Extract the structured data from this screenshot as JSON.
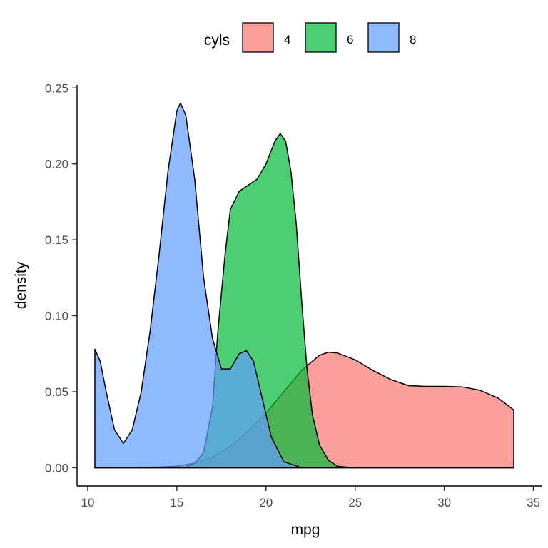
{
  "chart_data": {
    "type": "area",
    "title": "",
    "xlabel": "mpg",
    "ylabel": "density",
    "xlim": [
      9.4,
      35.5
    ],
    "ylim": [
      -0.012,
      0.252
    ],
    "x_ticks": [
      10,
      15,
      20,
      25,
      30,
      35
    ],
    "y_ticks": [
      0.0,
      0.05,
      0.1,
      0.15,
      0.2,
      0.25
    ],
    "x_tick_labels": [
      "10",
      "15",
      "20",
      "25",
      "30",
      "35"
    ],
    "y_tick_labels": [
      "0.00",
      "0.05",
      "0.10",
      "0.15",
      "0.20",
      "0.25"
    ],
    "grid": false,
    "legend": {
      "title": "cyls",
      "position": "top",
      "entries": [
        "4",
        "6",
        "8"
      ]
    },
    "series": [
      {
        "name": "4",
        "color": "#F8766D",
        "points": [
          [
            10.4,
            0.0
          ],
          [
            12.0,
            0.0
          ],
          [
            13.0,
            0.0
          ],
          [
            14.0,
            0.0005
          ],
          [
            15.0,
            0.001
          ],
          [
            16.0,
            0.003
          ],
          [
            17.0,
            0.007
          ],
          [
            18.0,
            0.014
          ],
          [
            19.0,
            0.024
          ],
          [
            20.0,
            0.036
          ],
          [
            21.0,
            0.05
          ],
          [
            22.0,
            0.064
          ],
          [
            23.0,
            0.074
          ],
          [
            23.5,
            0.076
          ],
          [
            24.0,
            0.0755
          ],
          [
            25.0,
            0.071
          ],
          [
            26.0,
            0.064
          ],
          [
            27.0,
            0.058
          ],
          [
            28.0,
            0.054
          ],
          [
            29.0,
            0.0535
          ],
          [
            30.0,
            0.0535
          ],
          [
            31.0,
            0.0532
          ],
          [
            32.0,
            0.051
          ],
          [
            33.0,
            0.046
          ],
          [
            33.9,
            0.038
          ]
        ]
      },
      {
        "name": "6",
        "color": "#00BA38",
        "points": [
          [
            10.4,
            0.0
          ],
          [
            15.0,
            0.0
          ],
          [
            15.5,
            0.0005
          ],
          [
            16.0,
            0.003
          ],
          [
            16.5,
            0.01
          ],
          [
            17.0,
            0.04
          ],
          [
            17.3,
            0.09
          ],
          [
            17.7,
            0.14
          ],
          [
            18.0,
            0.17
          ],
          [
            18.5,
            0.182
          ],
          [
            19.0,
            0.186
          ],
          [
            19.5,
            0.19
          ],
          [
            20.0,
            0.2
          ],
          [
            20.5,
            0.215
          ],
          [
            20.8,
            0.22
          ],
          [
            21.1,
            0.215
          ],
          [
            21.4,
            0.195
          ],
          [
            21.7,
            0.16
          ],
          [
            22.0,
            0.11
          ],
          [
            22.3,
            0.065
          ],
          [
            22.6,
            0.035
          ],
          [
            23.0,
            0.015
          ],
          [
            23.5,
            0.005
          ],
          [
            24.0,
            0.001
          ],
          [
            25.0,
            0.0
          ],
          [
            33.9,
            0.0
          ]
        ]
      },
      {
        "name": "8",
        "color": "#619CFF",
        "points": [
          [
            10.4,
            0.078
          ],
          [
            10.7,
            0.07
          ],
          [
            11.0,
            0.052
          ],
          [
            11.5,
            0.025
          ],
          [
            12.0,
            0.016
          ],
          [
            12.5,
            0.025
          ],
          [
            13.0,
            0.05
          ],
          [
            13.5,
            0.09
          ],
          [
            14.0,
            0.14
          ],
          [
            14.5,
            0.195
          ],
          [
            15.0,
            0.235
          ],
          [
            15.2,
            0.24
          ],
          [
            15.5,
            0.232
          ],
          [
            16.0,
            0.19
          ],
          [
            16.5,
            0.125
          ],
          [
            17.0,
            0.085
          ],
          [
            17.5,
            0.065
          ],
          [
            18.0,
            0.065
          ],
          [
            18.5,
            0.075
          ],
          [
            18.9,
            0.077
          ],
          [
            19.3,
            0.07
          ],
          [
            19.8,
            0.045
          ],
          [
            20.3,
            0.02
          ],
          [
            21.0,
            0.004
          ],
          [
            22.0,
            0.0
          ],
          [
            33.9,
            0.0
          ]
        ]
      }
    ]
  }
}
